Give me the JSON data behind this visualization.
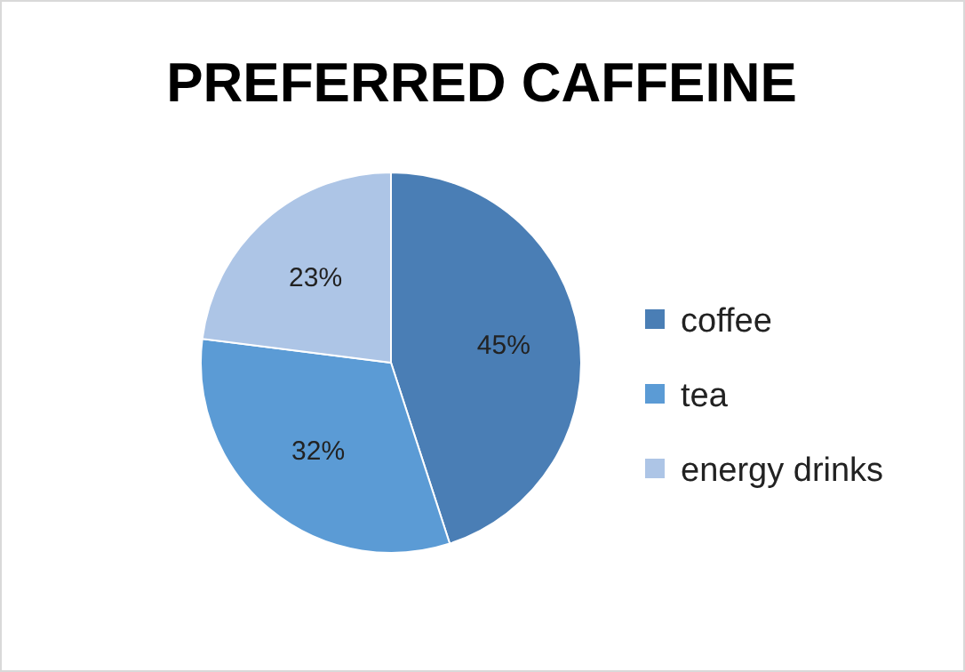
{
  "chart_data": {
    "type": "pie",
    "title": "PREFERRED CAFFEINE",
    "categories": [
      "coffee",
      "tea",
      "energy drinks"
    ],
    "values": [
      45,
      32,
      23
    ],
    "colors": [
      "#4a7eb5",
      "#5b9bd5",
      "#adc5e6"
    ],
    "value_labels": [
      "45%",
      "32%",
      "23%"
    ],
    "legend": "right"
  }
}
